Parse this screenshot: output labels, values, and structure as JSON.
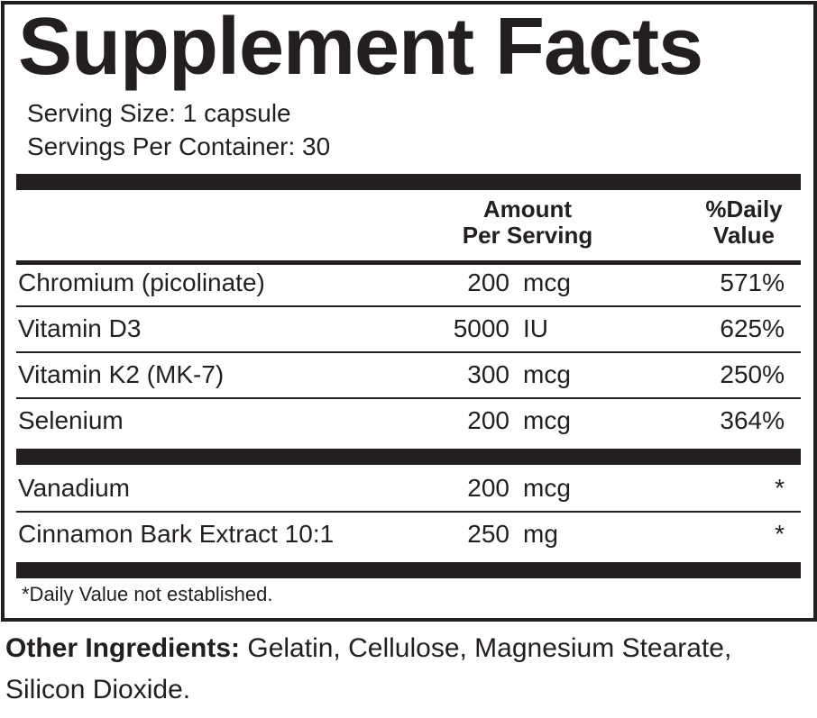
{
  "title": "Supplement Facts",
  "serving_size": "Serving Size: 1 capsule",
  "servings_per_container": "Servings Per Container: 30",
  "header": {
    "amount": [
      "Amount",
      "Per Serving"
    ],
    "daily_value": [
      "%Daily",
      "Value"
    ]
  },
  "sections": [
    {
      "rows": [
        {
          "name": "Chromium (picolinate)",
          "amount": "200",
          "unit": "mcg",
          "dv": "571%"
        },
        {
          "name": "Vitamin D3",
          "amount": "5000",
          "unit": "IU",
          "dv": "625%"
        },
        {
          "name": "Vitamin K2 (MK-7)",
          "amount": "300",
          "unit": "mcg",
          "dv": "250%"
        },
        {
          "name": "Selenium",
          "amount": "200",
          "unit": "mcg",
          "dv": "364%"
        }
      ]
    },
    {
      "rows": [
        {
          "name": "Vanadium",
          "amount": "200",
          "unit": "mcg",
          "dv": "*"
        },
        {
          "name": "Cinnamon Bark Extract 10:1",
          "amount": "250",
          "unit": "mg",
          "dv": "*"
        }
      ]
    }
  ],
  "footnote": "*Daily Value not established.",
  "other_ingredients": {
    "label": "Other Ingredients:",
    "text": "Gelatin, Cellulose, Magnesium Stearate,",
    "text2": "Silicon Dioxide."
  }
}
